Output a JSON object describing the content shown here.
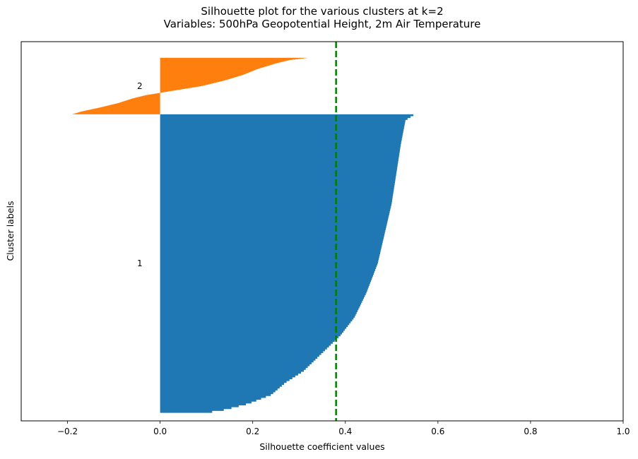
{
  "chart_data": {
    "type": "bar",
    "orientation": "horizontal",
    "title": "Silhouette plot for the various clusters at k=2",
    "subtitle": "Variables: 500hPa Geopotential Height, 2m Air Temperature",
    "xlabel": "Silhouette coefficient values",
    "ylabel": "Cluster labels",
    "xlim": [
      -0.3,
      1.0
    ],
    "xticks": [
      -0.2,
      0.0,
      0.2,
      0.4,
      0.6,
      0.8,
      1.0
    ],
    "xtick_labels": [
      "−0.2",
      "0.0",
      "0.2",
      "0.4",
      "0.6",
      "0.8",
      "1.0"
    ],
    "yticks": [],
    "grid": false,
    "average_silhouette": 0.38,
    "average_line_color": "#008000",
    "series": [
      {
        "label": "1",
        "color": "#1f77b4",
        "size": 370,
        "profile": [
          [
            0.0,
            0.55
          ],
          [
            0.02,
            0.53
          ],
          [
            0.1,
            0.52
          ],
          [
            0.2,
            0.51
          ],
          [
            0.3,
            0.5
          ],
          [
            0.4,
            0.485
          ],
          [
            0.5,
            0.47
          ],
          [
            0.6,
            0.445
          ],
          [
            0.68,
            0.42
          ],
          [
            0.74,
            0.39
          ],
          [
            0.8,
            0.35
          ],
          [
            0.86,
            0.31
          ],
          [
            0.9,
            0.27
          ],
          [
            0.94,
            0.24
          ],
          [
            0.97,
            0.19
          ],
          [
            0.99,
            0.14
          ],
          [
            1.0,
            0.1
          ]
        ]
      },
      {
        "label": "2",
        "color": "#ff7f0e",
        "size": 70,
        "profile": [
          [
            0.0,
            0.32
          ],
          [
            0.04,
            0.28
          ],
          [
            0.1,
            0.25
          ],
          [
            0.2,
            0.21
          ],
          [
            0.3,
            0.18
          ],
          [
            0.4,
            0.14
          ],
          [
            0.5,
            0.09
          ],
          [
            0.58,
            0.03
          ],
          [
            0.62,
            0.0
          ],
          [
            0.66,
            -0.03
          ],
          [
            0.72,
            -0.06
          ],
          [
            0.8,
            -0.09
          ],
          [
            0.88,
            -0.13
          ],
          [
            0.95,
            -0.17
          ],
          [
            1.0,
            -0.19
          ]
        ]
      }
    ]
  }
}
